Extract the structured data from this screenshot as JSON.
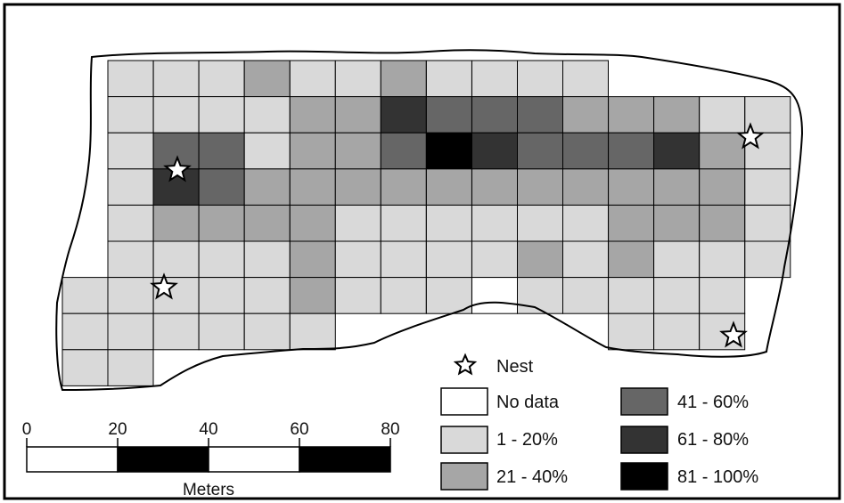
{
  "map": {
    "grid": {
      "rows": [
        [
          null,
          1,
          1,
          1,
          2,
          1,
          1,
          2,
          1,
          1,
          1,
          1,
          null,
          null,
          null,
          null
        ],
        [
          null,
          1,
          1,
          1,
          1,
          2,
          2,
          4,
          3,
          3,
          3,
          2,
          2,
          2,
          1,
          1
        ],
        [
          null,
          1,
          3,
          3,
          1,
          2,
          2,
          3,
          5,
          4,
          3,
          3,
          3,
          4,
          2,
          1
        ],
        [
          null,
          1,
          4,
          3,
          2,
          2,
          2,
          2,
          2,
          2,
          2,
          2,
          2,
          2,
          2,
          1
        ],
        [
          null,
          1,
          2,
          2,
          2,
          2,
          1,
          1,
          1,
          1,
          1,
          1,
          2,
          2,
          2,
          1
        ],
        [
          null,
          1,
          1,
          1,
          1,
          2,
          1,
          1,
          1,
          1,
          2,
          1,
          2,
          1,
          1,
          1
        ],
        [
          1,
          1,
          1,
          1,
          1,
          2,
          1,
          1,
          1,
          0,
          1,
          1,
          1,
          1,
          1,
          null
        ],
        [
          1,
          1,
          1,
          1,
          1,
          1,
          null,
          null,
          null,
          null,
          null,
          null,
          1,
          1,
          1,
          null
        ],
        [
          1,
          1,
          null,
          null,
          null,
          null,
          null,
          null,
          null,
          null,
          null,
          null,
          null,
          null,
          null,
          null
        ]
      ],
      "class_colors": [
        "#ffffff",
        "#d9d9d9",
        "#a6a6a6",
        "#666666",
        "#333333",
        "#000000"
      ]
    },
    "nests": [
      {
        "label": "Nest"
      },
      {
        "label": "Nest"
      },
      {
        "label": "Nest"
      },
      {
        "label": "Nest"
      }
    ]
  },
  "legend": {
    "nest_label": "Nest",
    "items": [
      {
        "label": "No data",
        "color": "#ffffff"
      },
      {
        "label": "1 - 20%",
        "color": "#d9d9d9"
      },
      {
        "label": "21 - 40%",
        "color": "#a6a6a6"
      },
      {
        "label": "41 - 60%",
        "color": "#666666"
      },
      {
        "label": "61 - 80%",
        "color": "#333333"
      },
      {
        "label": "81 - 100%",
        "color": "#000000"
      }
    ]
  },
  "scale_bar": {
    "ticks": [
      "0",
      "20",
      "40",
      "60",
      "80"
    ],
    "unit": "Meters"
  }
}
